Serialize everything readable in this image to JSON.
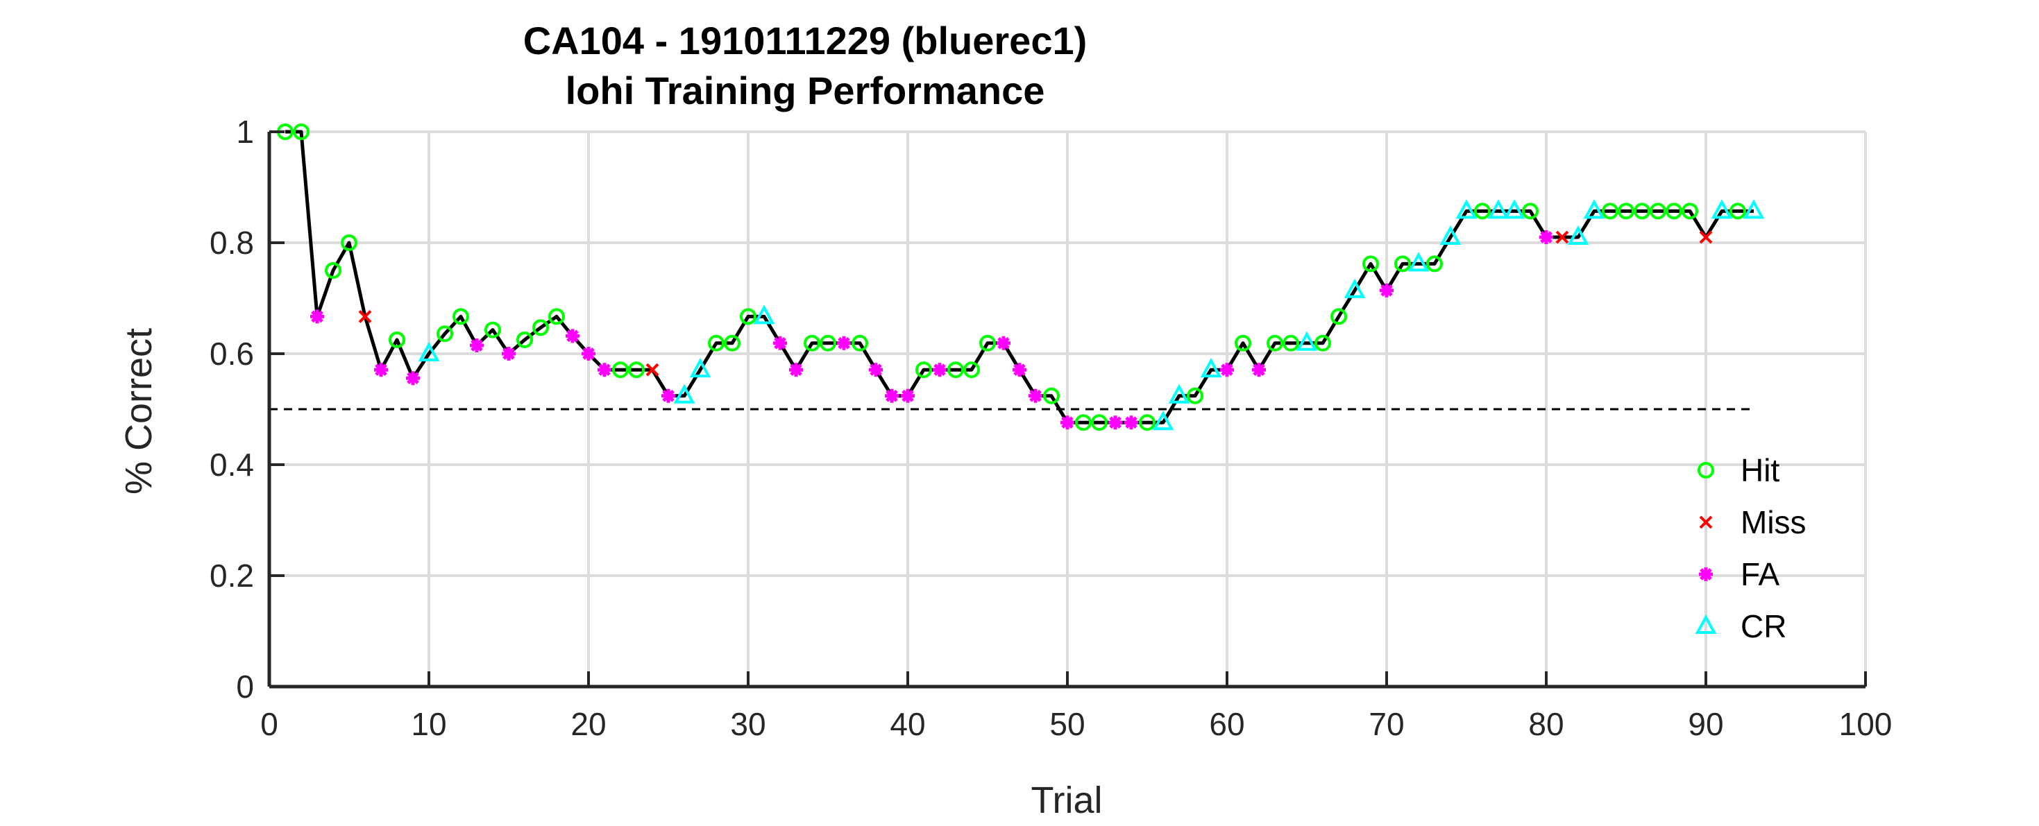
{
  "chart_data": {
    "type": "line",
    "title": "CA104 - 1910111229 (bluerec1)",
    "subtitle": "lohi Training Performance",
    "xlabel": "Trial",
    "ylabel": "% Correct",
    "xlim": [
      0,
      100
    ],
    "ylim": [
      0,
      1
    ],
    "xticks": [
      0,
      10,
      20,
      30,
      40,
      50,
      60,
      70,
      80,
      90,
      100
    ],
    "yticks": [
      0,
      0.2,
      0.4,
      0.6,
      0.8,
      1
    ],
    "xtick_labels": [
      "0",
      "10",
      "20",
      "30",
      "40",
      "50",
      "60",
      "70",
      "80",
      "90",
      "100"
    ],
    "ytick_labels": [
      "0",
      "0.2",
      "0.4",
      "0.6",
      "0.8",
      "1"
    ],
    "grid": true,
    "legend_position": "bottom-right",
    "reference_line": {
      "y": 0.5,
      "x_range": [
        0,
        93
      ],
      "style": "dashed"
    },
    "line_color": "#000000",
    "outcome_styles": {
      "Hit": {
        "marker": "circle",
        "color": "#00ff00"
      },
      "Miss": {
        "marker": "x",
        "color": "#ff0000"
      },
      "FA": {
        "marker": "asterisk",
        "color": "#ff00ff"
      },
      "CR": {
        "marker": "triangle",
        "color": "#00ffff"
      }
    },
    "legend": [
      "Hit",
      "Miss",
      "FA",
      "CR"
    ],
    "x": [
      1,
      2,
      3,
      4,
      5,
      6,
      7,
      8,
      9,
      10,
      11,
      12,
      13,
      14,
      15,
      16,
      17,
      18,
      19,
      20,
      21,
      22,
      23,
      24,
      25,
      26,
      27,
      28,
      29,
      30,
      31,
      32,
      33,
      34,
      35,
      36,
      37,
      38,
      39,
      40,
      41,
      42,
      43,
      44,
      45,
      46,
      47,
      48,
      49,
      50,
      51,
      52,
      53,
      54,
      55,
      56,
      57,
      58,
      59,
      60,
      61,
      62,
      63,
      64,
      65,
      66,
      67,
      68,
      69,
      70,
      71,
      72,
      73,
      74,
      75,
      76,
      77,
      78,
      79,
      80,
      81,
      82,
      83,
      84,
      85,
      86,
      87,
      88,
      89,
      90,
      91,
      92,
      93
    ],
    "y": [
      1.0,
      1.0,
      0.667,
      0.75,
      0.8,
      0.667,
      0.571,
      0.625,
      0.556,
      0.6,
      0.636,
      0.667,
      0.615,
      0.643,
      0.6,
      0.625,
      0.647,
      0.667,
      0.632,
      0.6,
      0.571,
      0.571,
      0.571,
      0.571,
      0.524,
      0.524,
      0.571,
      0.619,
      0.619,
      0.667,
      0.667,
      0.619,
      0.571,
      0.619,
      0.619,
      0.619,
      0.619,
      0.571,
      0.524,
      0.524,
      0.571,
      0.571,
      0.571,
      0.571,
      0.619,
      0.619,
      0.571,
      0.524,
      0.524,
      0.476,
      0.476,
      0.476,
      0.476,
      0.476,
      0.476,
      0.476,
      0.524,
      0.524,
      0.571,
      0.571,
      0.619,
      0.571,
      0.619,
      0.619,
      0.619,
      0.619,
      0.667,
      0.714,
      0.762,
      0.714,
      0.762,
      0.762,
      0.762,
      0.81,
      0.857,
      0.857,
      0.857,
      0.857,
      0.857,
      0.81,
      0.81,
      0.81,
      0.857,
      0.857,
      0.857,
      0.857,
      0.857,
      0.857,
      0.857,
      0.81,
      0.857,
      0.857,
      0.857
    ],
    "outcomes": [
      "Hit",
      "Hit",
      "FA",
      "Hit",
      "Hit",
      "Miss",
      "FA",
      "Hit",
      "FA",
      "CR",
      "Hit",
      "Hit",
      "FA",
      "Hit",
      "FA",
      "Hit",
      "Hit",
      "Hit",
      "FA",
      "FA",
      "FA",
      "Hit",
      "Hit",
      "Miss",
      "FA",
      "CR",
      "CR",
      "Hit",
      "Hit",
      "Hit",
      "CR",
      "FA",
      "FA",
      "Hit",
      "Hit",
      "FA",
      "Hit",
      "FA",
      "FA",
      "FA",
      "Hit",
      "FA",
      "Hit",
      "Hit",
      "Hit",
      "FA",
      "FA",
      "FA",
      "Hit",
      "FA",
      "Hit",
      "Hit",
      "FA",
      "FA",
      "Hit",
      "CR",
      "CR",
      "Hit",
      "CR",
      "FA",
      "Hit",
      "FA",
      "Hit",
      "Hit",
      "CR",
      "Hit",
      "Hit",
      "CR",
      "Hit",
      "FA",
      "Hit",
      "CR",
      "Hit",
      "CR",
      "CR",
      "Hit",
      "CR",
      "CR",
      "Hit",
      "FA",
      "Miss",
      "CR",
      "CR",
      "Hit",
      "Hit",
      "Hit",
      "Hit",
      "Hit",
      "Hit",
      "Miss",
      "CR",
      "Hit",
      "CR"
    ]
  }
}
